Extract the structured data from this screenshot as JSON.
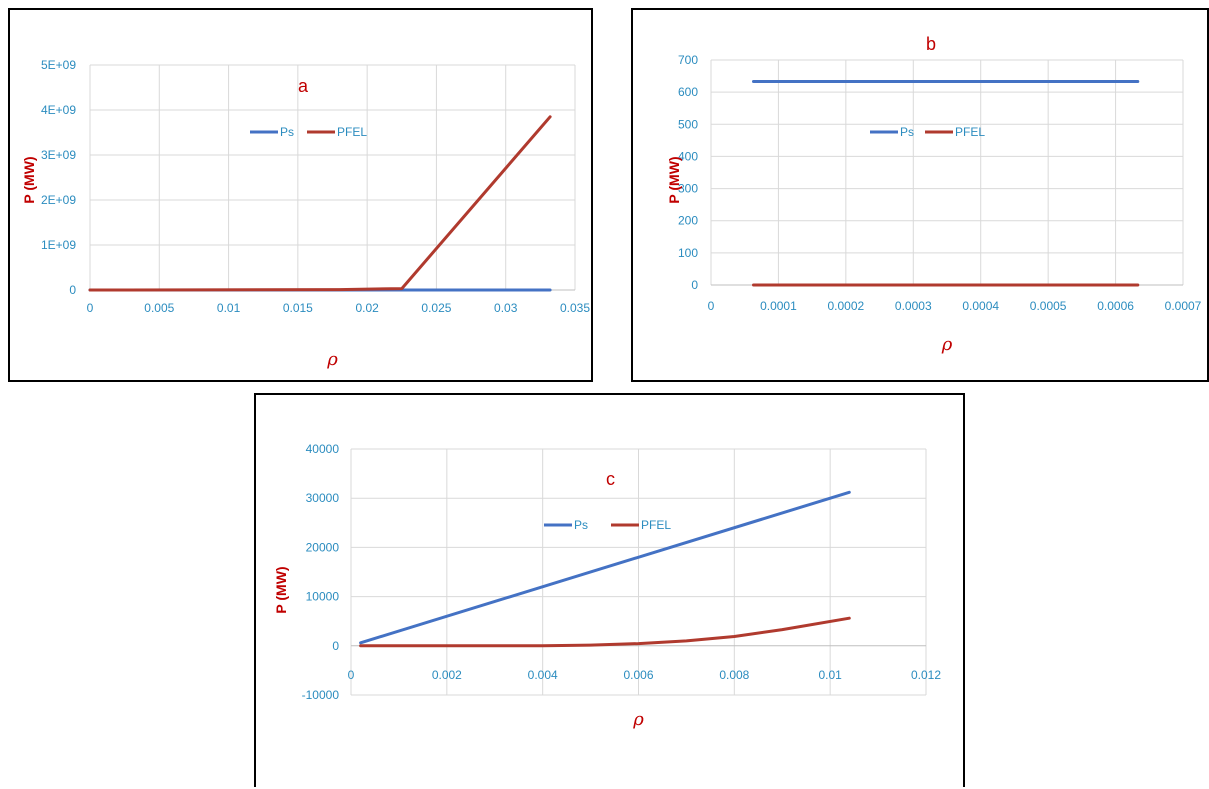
{
  "colors": {
    "ps": "#4472c4",
    "pfel": "#b03a2e",
    "axis_text": "#2b8cbf",
    "label": "#c00000",
    "grid": "#d9d9d9"
  },
  "chart_data": [
    {
      "id": "a",
      "type": "line",
      "panel_label": "a",
      "xlabel": "ρ",
      "ylabel": "P (MW)",
      "xlim": [
        0,
        0.035
      ],
      "ylim": [
        0,
        5000000000
      ],
      "x_ticks": [
        "0",
        "0.005",
        "0.01",
        "0.015",
        "0.02",
        "0.025",
        "0.03",
        "0.035"
      ],
      "y_ticks": [
        "0",
        "1E+09",
        "2E+09",
        "3E+09",
        "4E+09",
        "5E+09"
      ],
      "grid": true,
      "legend_position": "top-center",
      "series": [
        {
          "name": "Ps",
          "x": [
            0,
            0.0225,
            0.0332
          ],
          "y": [
            0,
            0,
            0
          ]
        },
        {
          "name": "PFEL",
          "x": [
            0,
            0.018,
            0.0225,
            0.0332
          ],
          "y": [
            0,
            10000000,
            30000000,
            3850000000
          ]
        }
      ]
    },
    {
      "id": "b",
      "type": "line",
      "panel_label": "b",
      "xlabel": "ρ",
      "ylabel": "P (MW)",
      "xlim": [
        0,
        0.0007
      ],
      "ylim": [
        0,
        700
      ],
      "x_ticks": [
        "0",
        "0.0001",
        "0.0002",
        "0.0003",
        "0.0004",
        "0.0005",
        "0.0006",
        "0.0007"
      ],
      "y_ticks": [
        "0",
        "100",
        "200",
        "300",
        "400",
        "500",
        "600",
        "700"
      ],
      "grid": true,
      "legend_position": "center",
      "series": [
        {
          "name": "Ps",
          "x": [
            6.3e-05,
            0.000633
          ],
          "y": [
            633,
            633
          ]
        },
        {
          "name": "PFEL",
          "x": [
            6.3e-05,
            0.000633
          ],
          "y": [
            0,
            0
          ]
        }
      ]
    },
    {
      "id": "c",
      "type": "line",
      "panel_label": "c",
      "xlabel": "ρ",
      "ylabel": "P (MW)",
      "xlim": [
        0,
        0.012
      ],
      "ylim": [
        -10000,
        40000
      ],
      "x_ticks": [
        "0",
        "0.002",
        "0.004",
        "0.006",
        "0.008",
        "0.01",
        "0.012"
      ],
      "y_ticks": [
        "-10000",
        "0",
        "10000",
        "20000",
        "30000",
        "40000"
      ],
      "grid": true,
      "legend_position": "top-center",
      "series": [
        {
          "name": "Ps",
          "x": [
            0.0002,
            0.0104
          ],
          "y": [
            600,
            31200
          ]
        },
        {
          "name": "PFEL",
          "x": [
            0.0002,
            0.002,
            0.004,
            0.005,
            0.006,
            0.007,
            0.008,
            0.009,
            0.0104
          ],
          "y": [
            0,
            0,
            0,
            150,
            450,
            1000,
            1900,
            3300,
            5600
          ]
        }
      ]
    }
  ]
}
